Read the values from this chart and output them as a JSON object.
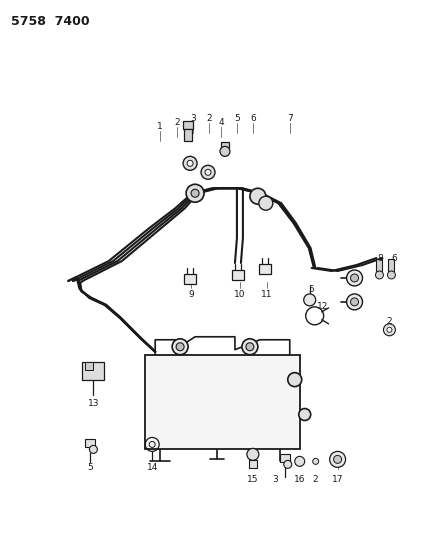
{
  "title": "5758  7400",
  "bg_color": "#ffffff",
  "lc": "#1a1a1a",
  "fig_width": 4.28,
  "fig_height": 5.33,
  "dpi": 100,
  "tube_lw": 1.5,
  "thin_lw": 0.8
}
